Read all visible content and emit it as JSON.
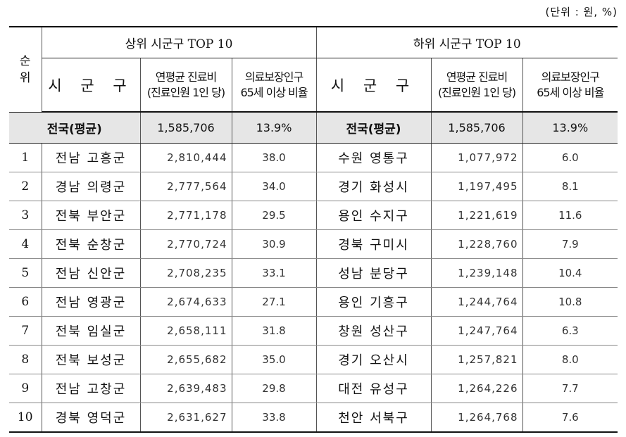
{
  "unit_note": "(단위 : 원, %)",
  "header": {
    "rank": "순위",
    "top_group": "상위 시군구 TOP 10",
    "bottom_group": "하위 시군구 TOP 10",
    "sigungu": "시 군 구",
    "cost_line1": "연평균 진료비",
    "cost_line2": "(진료인원 1인 당)",
    "ratio_line1": "의료보장인구",
    "ratio_line2": "65세 이상 비율"
  },
  "national_avg": {
    "label": "전국(평균)",
    "cost": "1,585,706",
    "ratio": "13.9%"
  },
  "rows": [
    {
      "rank": "1",
      "top_name": "전남 고흥군",
      "top_cost": "2,810,444",
      "top_ratio": "38.0",
      "bottom_name": "수원 영통구",
      "bottom_cost": "1,077,972",
      "bottom_ratio": "6.0"
    },
    {
      "rank": "2",
      "top_name": "경남 의령군",
      "top_cost": "2,777,564",
      "top_ratio": "34.0",
      "bottom_name": "경기 화성시",
      "bottom_cost": "1,197,495",
      "bottom_ratio": "8.1"
    },
    {
      "rank": "3",
      "top_name": "전북 부안군",
      "top_cost": "2,771,178",
      "top_ratio": "29.5",
      "bottom_name": "용인 수지구",
      "bottom_cost": "1,221,619",
      "bottom_ratio": "11.6"
    },
    {
      "rank": "4",
      "top_name": "전북 순창군",
      "top_cost": "2,770,724",
      "top_ratio": "30.9",
      "bottom_name": "경북 구미시",
      "bottom_cost": "1,228,760",
      "bottom_ratio": "7.9"
    },
    {
      "rank": "5",
      "top_name": "전남 신안군",
      "top_cost": "2,708,235",
      "top_ratio": "33.1",
      "bottom_name": "성남 분당구",
      "bottom_cost": "1,239,148",
      "bottom_ratio": "10.4"
    },
    {
      "rank": "6",
      "top_name": "전남 영광군",
      "top_cost": "2,674,633",
      "top_ratio": "27.1",
      "bottom_name": "용인 기흥구",
      "bottom_cost": "1,244,764",
      "bottom_ratio": "10.8"
    },
    {
      "rank": "7",
      "top_name": "전북 임실군",
      "top_cost": "2,658,111",
      "top_ratio": "31.8",
      "bottom_name": "창원 성산구",
      "bottom_cost": "1,247,764",
      "bottom_ratio": "6.3"
    },
    {
      "rank": "8",
      "top_name": "전북 보성군",
      "top_cost": "2,655,682",
      "top_ratio": "35.0",
      "bottom_name": "경기 오산시",
      "bottom_cost": "1,257,821",
      "bottom_ratio": "8.0"
    },
    {
      "rank": "9",
      "top_name": "전남 고창군",
      "top_cost": "2,639,483",
      "top_ratio": "29.8",
      "bottom_name": "대전 유성구",
      "bottom_cost": "1,264,226",
      "bottom_ratio": "7.7"
    },
    {
      "rank": "10",
      "top_name": "경북 영덕군",
      "top_cost": "2,631,627",
      "top_ratio": "33.8",
      "bottom_name": "천안 서북구",
      "bottom_cost": "1,264,768",
      "bottom_ratio": "7.6"
    }
  ]
}
